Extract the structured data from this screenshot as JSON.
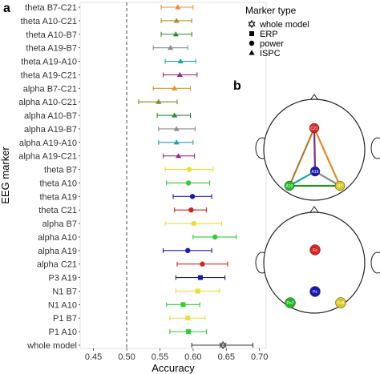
{
  "panel_labels": {
    "a": "a",
    "b": "b"
  },
  "chart_data": {
    "type": "scatter",
    "xlabel": "Accuracy",
    "ylabel": "EEG marker",
    "xlim": [
      0.43,
      0.71
    ],
    "xticks": [
      0.45,
      0.5,
      0.55,
      0.6,
      0.65,
      0.7
    ],
    "xtick_labels": [
      "0.45",
      "0.50",
      "0.55",
      "0.60",
      "0.65",
      "0.70"
    ],
    "reference_line_x": 0.5,
    "grid": false,
    "legend": {
      "title": "Marker type",
      "position": "top-right",
      "entries": [
        {
          "label": "whole model",
          "marker": "star-of-david"
        },
        {
          "label": "ERP",
          "marker": "square"
        },
        {
          "label": "power",
          "marker": "circle"
        },
        {
          "label": "ISPC",
          "marker": "triangle"
        }
      ]
    },
    "points": [
      {
        "label": "theta B7-C21",
        "mean": 0.577,
        "lo": 0.552,
        "hi": 0.6,
        "marker": "triangle",
        "color": "#f28c28"
      },
      {
        "label": "theta A10-C21",
        "mean": 0.575,
        "lo": 0.552,
        "hi": 0.598,
        "marker": "triangle",
        "color": "#a89028"
      },
      {
        "label": "theta A10-B7",
        "mean": 0.574,
        "lo": 0.552,
        "hi": 0.598,
        "marker": "triangle",
        "color": "#2e8b2e"
      },
      {
        "label": "theta A19-B7",
        "mean": 0.566,
        "lo": 0.54,
        "hi": 0.592,
        "marker": "triangle",
        "color": "#8c8c8c"
      },
      {
        "label": "theta A19-A10",
        "mean": 0.581,
        "lo": 0.558,
        "hi": 0.604,
        "marker": "triangle",
        "color": "#1fa5a5"
      },
      {
        "label": "theta A19-C21",
        "mean": 0.58,
        "lo": 0.555,
        "hi": 0.606,
        "marker": "triangle",
        "color": "#8e2f8e"
      },
      {
        "label": "alpha B7-C21",
        "mean": 0.572,
        "lo": 0.54,
        "hi": 0.596,
        "marker": "triangle",
        "color": "#e89030"
      },
      {
        "label": "alpha A10-C21",
        "mean": 0.548,
        "lo": 0.518,
        "hi": 0.576,
        "marker": "triangle",
        "color": "#8a8a1e"
      },
      {
        "label": "alpha A10-B7",
        "mean": 0.572,
        "lo": 0.546,
        "hi": 0.596,
        "marker": "triangle",
        "color": "#2e8b2e"
      },
      {
        "label": "alpha A19-B7",
        "mean": 0.575,
        "lo": 0.548,
        "hi": 0.603,
        "marker": "triangle",
        "color": "#8c8c8c"
      },
      {
        "label": "alpha A19-A10",
        "mean": 0.575,
        "lo": 0.548,
        "hi": 0.6,
        "marker": "triangle",
        "color": "#1fa5a5"
      },
      {
        "label": "alpha A19-C21",
        "mean": 0.578,
        "lo": 0.555,
        "hi": 0.602,
        "marker": "triangle",
        "color": "#8e2f8e"
      },
      {
        "label": "theta B7",
        "mean": 0.594,
        "lo": 0.558,
        "hi": 0.63,
        "marker": "circle",
        "color": "#e8e030"
      },
      {
        "label": "theta A10",
        "mean": 0.593,
        "lo": 0.56,
        "hi": 0.625,
        "marker": "circle",
        "color": "#33cc33"
      },
      {
        "label": "theta A19",
        "mean": 0.599,
        "lo": 0.57,
        "hi": 0.628,
        "marker": "circle",
        "color": "#1a1ab3"
      },
      {
        "label": "theta C21",
        "mean": 0.597,
        "lo": 0.572,
        "hi": 0.62,
        "marker": "circle",
        "color": "#cc2222"
      },
      {
        "label": "alpha B7",
        "mean": 0.601,
        "lo": 0.558,
        "hi": 0.643,
        "marker": "circle",
        "color": "#e8e030"
      },
      {
        "label": "alpha A10",
        "mean": 0.633,
        "lo": 0.6,
        "hi": 0.665,
        "marker": "circle",
        "color": "#33cc33"
      },
      {
        "label": "alpha A19",
        "mean": 0.592,
        "lo": 0.555,
        "hi": 0.628,
        "marker": "circle",
        "color": "#1a1ab3"
      },
      {
        "label": "alpha C21",
        "mean": 0.614,
        "lo": 0.576,
        "hi": 0.652,
        "marker": "circle",
        "color": "#dd2222"
      },
      {
        "label": "P3 A19",
        "mean": 0.611,
        "lo": 0.574,
        "hi": 0.648,
        "marker": "square",
        "color": "#1a1ab3"
      },
      {
        "label": "N1 B7",
        "mean": 0.607,
        "lo": 0.574,
        "hi": 0.64,
        "marker": "square",
        "color": "#e8e030"
      },
      {
        "label": "N1 A10",
        "mean": 0.585,
        "lo": 0.56,
        "hi": 0.61,
        "marker": "square",
        "color": "#33cc33"
      },
      {
        "label": "P1 B7",
        "mean": 0.592,
        "lo": 0.565,
        "hi": 0.618,
        "marker": "square",
        "color": "#e8e030"
      },
      {
        "label": "P1 A10",
        "mean": 0.593,
        "lo": 0.565,
        "hi": 0.62,
        "marker": "square",
        "color": "#33cc33"
      },
      {
        "label": "whole model",
        "mean": 0.645,
        "lo": 0.598,
        "hi": 0.69,
        "marker": "star-of-david",
        "color": "#333333"
      }
    ]
  },
  "diagram": {
    "head1_electrodes": [
      {
        "id": "C21",
        "label": "C21",
        "color": "#dd2222"
      },
      {
        "id": "A19",
        "label": "A19",
        "color": "#1a1ab3"
      },
      {
        "id": "A10",
        "label": "A10",
        "color": "#22bb22"
      },
      {
        "id": "B7",
        "label": "B7",
        "color": "#d8c820"
      }
    ],
    "head1_connections": [
      {
        "from": "C21",
        "to": "A10",
        "color": "#b07d28"
      },
      {
        "from": "C21",
        "to": "B7",
        "color": "#e88a2a"
      },
      {
        "from": "C21",
        "to": "A19",
        "color": "#7a2a8a"
      },
      {
        "from": "A19",
        "to": "A10",
        "color": "#22a5a5"
      },
      {
        "from": "A19",
        "to": "B7",
        "color": "#8c8c8c"
      },
      {
        "from": "A10",
        "to": "B7",
        "color": "#2a8a2a"
      }
    ],
    "head2_electrodes": [
      {
        "id": "Fz",
        "label": "Fz",
        "color": "#dd2222"
      },
      {
        "id": "Pz",
        "label": "Pz",
        "color": "#1a1ab3"
      },
      {
        "id": "Po7",
        "label": "Po7",
        "color": "#22bb22"
      },
      {
        "id": "Po8",
        "label": "Po8",
        "color": "#d8c820"
      }
    ]
  }
}
